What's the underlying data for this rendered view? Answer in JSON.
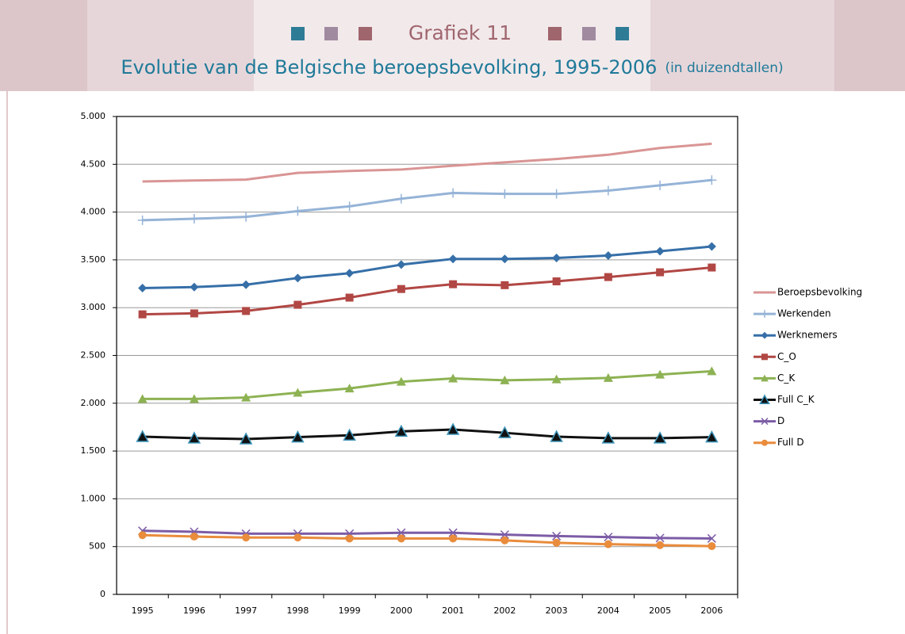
{
  "chart_data": {
    "type": "line",
    "title": "Grafiek 11",
    "subtitle": "Evolutie van de Belgische beroepsbevolking, 1995-2006",
    "unit_note": "(in duizendtallen)",
    "categories": [
      "1995",
      "1996",
      "1997",
      "1998",
      "1999",
      "2000",
      "2001",
      "2002",
      "2003",
      "2004",
      "2005",
      "2006"
    ],
    "ylim": [
      0,
      5000
    ],
    "yticks": [
      0,
      500,
      {
        "value": 1000,
        "label": "1.000"
      },
      {
        "value": 1500,
        "label": "1.500"
      },
      {
        "value": 2000,
        "label": "2.000"
      },
      {
        "value": 2500,
        "label": "2.500"
      },
      {
        "value": 3000,
        "label": "3.000"
      },
      {
        "value": 3500,
        "label": "3.500"
      },
      {
        "value": 4000,
        "label": "4.000"
      },
      {
        "value": 4500,
        "label": "4.500"
      },
      {
        "value": 5000,
        "label": "5.000"
      }
    ],
    "grid": true,
    "legend": "right",
    "series": [
      {
        "name": "Beroepsbevolking",
        "color": "#d99594",
        "marker": "none",
        "values": [
          4320,
          4330,
          4340,
          4410,
          4430,
          4445,
          4485,
          4520,
          4555,
          4600,
          4670,
          4715
        ]
      },
      {
        "name": "Werkenden",
        "color": "#95b3d7",
        "marker": "plus",
        "values": [
          3915,
          3930,
          3950,
          4010,
          4060,
          4140,
          4200,
          4190,
          4190,
          4225,
          4280,
          4335
        ]
      },
      {
        "name": "Werknemers",
        "color": "#366fa8",
        "marker": "diamond",
        "values": [
          3205,
          3215,
          3240,
          3310,
          3360,
          3450,
          3510,
          3510,
          3520,
          3545,
          3590,
          3640
        ]
      },
      {
        "name": "C_O",
        "color": "#b14744",
        "marker": "square",
        "values": [
          2930,
          2940,
          2965,
          3030,
          3105,
          3195,
          3245,
          3235,
          3275,
          3320,
          3370,
          3420
        ]
      },
      {
        "name": "C_K",
        "color": "#8db253",
        "marker": "triangle",
        "values": [
          2045,
          2045,
          2060,
          2110,
          2155,
          2225,
          2260,
          2240,
          2250,
          2265,
          2300,
          2335
        ]
      },
      {
        "name": "Full C_K",
        "color": "#111111",
        "marker": "triangle-outline",
        "values": [
          1650,
          1635,
          1625,
          1645,
          1665,
          1705,
          1725,
          1690,
          1650,
          1635,
          1635,
          1645
        ]
      },
      {
        "name": "D",
        "color": "#7c5ca6",
        "marker": "x",
        "values": [
          665,
          655,
          635,
          635,
          635,
          645,
          645,
          625,
          610,
          600,
          590,
          585
        ]
      },
      {
        "name": "Full D",
        "color": "#e98c3c",
        "marker": "circle",
        "values": [
          620,
          605,
          595,
          595,
          585,
          585,
          585,
          565,
          540,
          525,
          515,
          505
        ]
      }
    ]
  }
}
